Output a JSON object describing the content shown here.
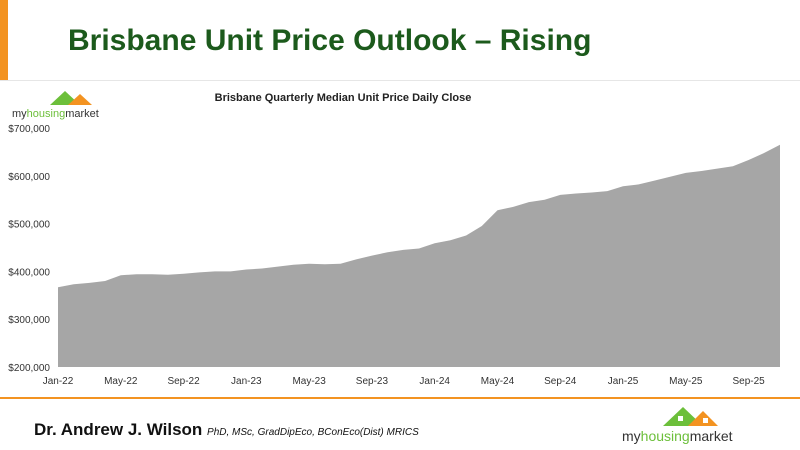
{
  "slide": {
    "title": "Brisbane Unit Price Outlook – Rising",
    "author_name": "Dr. Andrew J. Wilson",
    "author_credentials": "PhD, MSc, GradDipEco, BConEco(Dist) MRICS",
    "logo_text": "myhousingmarket",
    "accent_color": "#f39321",
    "title_color": "#1c5a1c"
  },
  "chart_data": {
    "type": "area",
    "title": "Brisbane Quarterly Median Unit Price Daily Close",
    "xlabel": "",
    "ylabel": "",
    "ylim": [
      200000,
      700000
    ],
    "yticks": [
      "$200,000",
      "$300,000",
      "$400,000",
      "$500,000",
      "$600,000",
      "$700,000"
    ],
    "xticks": [
      "Jan-22",
      "May-22",
      "Sep-22",
      "Jan-23",
      "May-23",
      "Sep-23",
      "Jan-24",
      "May-24",
      "Sep-24",
      "Jan-25",
      "May-25",
      "Sep-25"
    ],
    "grid": false,
    "fill_color": "#a6a6a6",
    "x": [
      "Jan-22",
      "Feb-22",
      "Mar-22",
      "Apr-22",
      "May-22",
      "Jun-22",
      "Jul-22",
      "Aug-22",
      "Sep-22",
      "Oct-22",
      "Nov-22",
      "Dec-22",
      "Jan-23",
      "Feb-23",
      "Mar-23",
      "Apr-23",
      "May-23",
      "Jun-23",
      "Jul-23",
      "Aug-23",
      "Sep-23",
      "Oct-23",
      "Nov-23",
      "Dec-23",
      "Jan-24",
      "Feb-24",
      "Mar-24",
      "Apr-24",
      "May-24",
      "Jun-24",
      "Jul-24",
      "Aug-24",
      "Sep-24",
      "Oct-24",
      "Nov-24",
      "Dec-24",
      "Jan-25",
      "Feb-25",
      "Mar-25",
      "Apr-25",
      "May-25",
      "Jun-25",
      "Jul-25",
      "Aug-25",
      "Sep-25",
      "Oct-25",
      "Nov-25"
    ],
    "values": [
      367000,
      373000,
      376000,
      380000,
      392000,
      394000,
      394000,
      393000,
      395000,
      398000,
      400000,
      400000,
      404000,
      406000,
      410000,
      414000,
      416000,
      415000,
      416000,
      425000,
      433000,
      440000,
      445000,
      448000,
      459000,
      465000,
      475000,
      495000,
      528000,
      535000,
      545000,
      550000,
      560000,
      563000,
      565000,
      568000,
      578000,
      582000,
      590000,
      598000,
      606000,
      610000,
      615000,
      620000,
      633000,
      648000,
      665000
    ]
  }
}
